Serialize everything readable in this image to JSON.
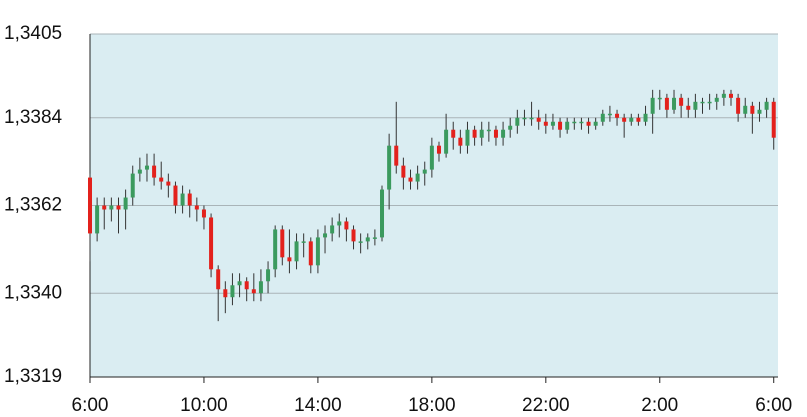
{
  "chart_data": {
    "type": "candlestick",
    "x": [
      6,
      6.25,
      6.5,
      6.75,
      7,
      7.25,
      7.5,
      7.75,
      8,
      8.25,
      8.5,
      8.75,
      9,
      9.25,
      9.5,
      9.75,
      10,
      10.25,
      10.5,
      10.75,
      11,
      11.25,
      11.5,
      11.75,
      12,
      12.25,
      12.5,
      12.75,
      13,
      13.25,
      13.5,
      13.75,
      14,
      14.25,
      14.5,
      14.75,
      15,
      15.25,
      15.5,
      15.75,
      16,
      16.25,
      16.5,
      16.75,
      17,
      17.25,
      17.5,
      17.75,
      18,
      18.25,
      18.5,
      18.75,
      19,
      19.25,
      19.5,
      19.75,
      20,
      20.25,
      20.5,
      20.75,
      21,
      21.25,
      21.5,
      21.75,
      22,
      22.25,
      22.5,
      22.75,
      23,
      23.25,
      23.5,
      23.75,
      24,
      24.25,
      24.5,
      24.75,
      25,
      25.25,
      25.5,
      25.75,
      26,
      26.25,
      26.5,
      26.75,
      27,
      27.25,
      27.5,
      27.75,
      28,
      28.25,
      28.5,
      28.75,
      29,
      29.25,
      29.5,
      29.75,
      30
    ],
    "open": [
      1.3369,
      1.3355,
      1.3362,
      1.3361,
      1.3362,
      1.3361,
      1.3364,
      1.337,
      1.3371,
      1.3372,
      1.3369,
      1.3368,
      1.3367,
      1.3362,
      1.3365,
      1.3362,
      1.3361,
      1.3359,
      1.3346,
      1.3341,
      1.3339,
      1.3342,
      1.3343,
      1.3341,
      1.334,
      1.3343,
      1.3346,
      1.3356,
      1.3349,
      1.3348,
      1.3353,
      1.3353,
      1.3347,
      1.3354,
      1.3355,
      1.3357,
      1.3358,
      1.3356,
      1.3353,
      1.3353,
      1.3354,
      1.3354,
      1.3366,
      1.3377,
      1.3372,
      1.3369,
      1.3368,
      1.337,
      1.3371,
      1.3377,
      1.3375,
      1.3381,
      1.3379,
      1.3377,
      1.3381,
      1.3379,
      1.3381,
      1.3381,
      1.3379,
      1.3381,
      1.3382,
      1.3384,
      1.3384,
      1.3384,
      1.3383,
      1.3382,
      1.3383,
      1.3381,
      1.3383,
      1.3383,
      1.3383,
      1.3382,
      1.3383,
      1.3385,
      1.3385,
      1.3384,
      1.3383,
      1.3384,
      1.3383,
      1.3385,
      1.3389,
      1.3389,
      1.3386,
      1.3389,
      1.3387,
      1.3386,
      1.3388,
      1.3388,
      1.3388,
      1.3389,
      1.339,
      1.3389,
      1.3385,
      1.3387,
      1.3385,
      1.3386,
      1.3388
    ],
    "high": [
      1.337,
      1.3364,
      1.3364,
      1.3364,
      1.3364,
      1.3366,
      1.3372,
      1.3374,
      1.3375,
      1.3375,
      1.3373,
      1.337,
      1.3368,
      1.3367,
      1.3366,
      1.3364,
      1.3362,
      1.336,
      1.3347,
      1.3343,
      1.3345,
      1.3345,
      1.3344,
      1.3345,
      1.3346,
      1.3348,
      1.3357,
      1.3357,
      1.3356,
      1.3355,
      1.3355,
      1.3354,
      1.3356,
      1.3357,
      1.3359,
      1.336,
      1.3359,
      1.3357,
      1.3355,
      1.3355,
      1.3356,
      1.3367,
      1.338,
      1.3388,
      1.3374,
      1.3371,
      1.3372,
      1.3373,
      1.3379,
      1.3378,
      1.3385,
      1.3383,
      1.3381,
      1.3383,
      1.3382,
      1.3383,
      1.3383,
      1.3382,
      1.3383,
      1.3384,
      1.3386,
      1.3386,
      1.3388,
      1.3386,
      1.3385,
      1.3385,
      1.3384,
      1.3384,
      1.3384,
      1.3384,
      1.3384,
      1.3384,
      1.3386,
      1.3387,
      1.3386,
      1.3385,
      1.3385,
      1.3385,
      1.3387,
      1.3391,
      1.3391,
      1.339,
      1.3391,
      1.339,
      1.3389,
      1.339,
      1.3389,
      1.339,
      1.339,
      1.3391,
      1.3391,
      1.339,
      1.3389,
      1.3388,
      1.3388,
      1.3389,
      1.3389
    ],
    "low": [
      1.3348,
      1.3353,
      1.3356,
      1.3358,
      1.3355,
      1.3356,
      1.3362,
      1.3368,
      1.3368,
      1.3367,
      1.3366,
      1.3364,
      1.336,
      1.336,
      1.3359,
      1.3358,
      1.3356,
      1.3344,
      1.3333,
      1.3335,
      1.3337,
      1.3339,
      1.3338,
      1.3338,
      1.3338,
      1.334,
      1.3344,
      1.3347,
      1.3345,
      1.3346,
      1.3349,
      1.3345,
      1.3345,
      1.335,
      1.3353,
      1.3354,
      1.3353,
      1.3351,
      1.335,
      1.3351,
      1.3352,
      1.3353,
      1.3361,
      1.337,
      1.3366,
      1.3366,
      1.3366,
      1.3367,
      1.3369,
      1.3373,
      1.3374,
      1.3376,
      1.3375,
      1.3375,
      1.3377,
      1.3377,
      1.3378,
      1.3377,
      1.3377,
      1.3379,
      1.338,
      1.3382,
      1.3382,
      1.3381,
      1.338,
      1.3381,
      1.3379,
      1.338,
      1.3381,
      1.3381,
      1.338,
      1.3381,
      1.3382,
      1.3383,
      1.3382,
      1.3379,
      1.3382,
      1.3382,
      1.3382,
      1.338,
      1.3386,
      1.3384,
      1.3385,
      1.3384,
      1.3384,
      1.3384,
      1.3385,
      1.3386,
      1.3386,
      1.3387,
      1.3387,
      1.3383,
      1.3384,
      1.338,
      1.3383,
      1.3384,
      1.3376
    ],
    "close": [
      1.3355,
      1.3362,
      1.3361,
      1.3362,
      1.3361,
      1.3364,
      1.337,
      1.3371,
      1.3372,
      1.3369,
      1.3368,
      1.3367,
      1.3362,
      1.3365,
      1.3362,
      1.3361,
      1.3359,
      1.3346,
      1.3341,
      1.3339,
      1.3342,
      1.3343,
      1.3341,
      1.334,
      1.3343,
      1.3346,
      1.3356,
      1.3349,
      1.3348,
      1.3353,
      1.3353,
      1.3347,
      1.3354,
      1.3355,
      1.3357,
      1.3358,
      1.3356,
      1.3353,
      1.3353,
      1.3354,
      1.3354,
      1.3366,
      1.3377,
      1.3372,
      1.3369,
      1.3368,
      1.337,
      1.3371,
      1.3377,
      1.3375,
      1.3381,
      1.3379,
      1.3377,
      1.3381,
      1.3379,
      1.3381,
      1.3381,
      1.3379,
      1.3381,
      1.3382,
      1.3384,
      1.3384,
      1.3384,
      1.3383,
      1.3382,
      1.3383,
      1.3381,
      1.3383,
      1.3383,
      1.3383,
      1.3382,
      1.3383,
      1.3385,
      1.3385,
      1.3384,
      1.3383,
      1.3384,
      1.3383,
      1.3385,
      1.3389,
      1.3389,
      1.3386,
      1.3389,
      1.3387,
      1.3386,
      1.3388,
      1.3388,
      1.3388,
      1.3389,
      1.339,
      1.3389,
      1.3385,
      1.3387,
      1.3385,
      1.3386,
      1.3388,
      1.3379
    ],
    "xlim": [
      6,
      30.15
    ],
    "xticks": [
      {
        "value": 6,
        "label": "6:00"
      },
      {
        "value": 10,
        "label": "10:00"
      },
      {
        "value": 14,
        "label": "14:00"
      },
      {
        "value": 18,
        "label": "18:00"
      },
      {
        "value": 22,
        "label": "22:00"
      },
      {
        "value": 26,
        "label": "2:00"
      },
      {
        "value": 30,
        "label": "6:00"
      }
    ],
    "ylim": [
      1.3319,
      1.3405
    ],
    "yticks": [
      {
        "value": 1.3319,
        "label": "1,3319"
      },
      {
        "value": 1.334,
        "label": "1,3340"
      },
      {
        "value": 1.3362,
        "label": "1,3362"
      },
      {
        "value": 1.3384,
        "label": "1,3384"
      },
      {
        "value": 1.3405,
        "label": "1,3405"
      }
    ],
    "up_color": "#3b9a5e",
    "down_color": "#e3211c",
    "background": "#daedf2",
    "grid": true
  }
}
